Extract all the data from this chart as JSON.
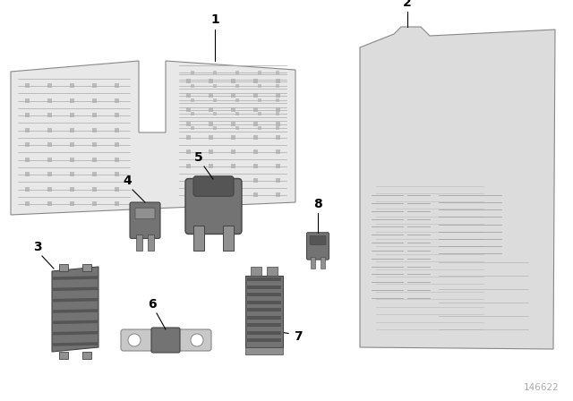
{
  "background_color": "#ffffff",
  "watermark": "146622",
  "card1_color": "#e8e8e8",
  "card1_edge": "#888888",
  "card2_color": "#dcdcdc",
  "card2_edge": "#888888",
  "part_color": "#737373",
  "part_light": "#909090",
  "part_dark": "#555555",
  "part_edge": "#444444",
  "metal_color": "#c8c8c8",
  "metal_edge": "#888888",
  "text_color": "#aaaaaa",
  "line_color": "#bbbbbb"
}
